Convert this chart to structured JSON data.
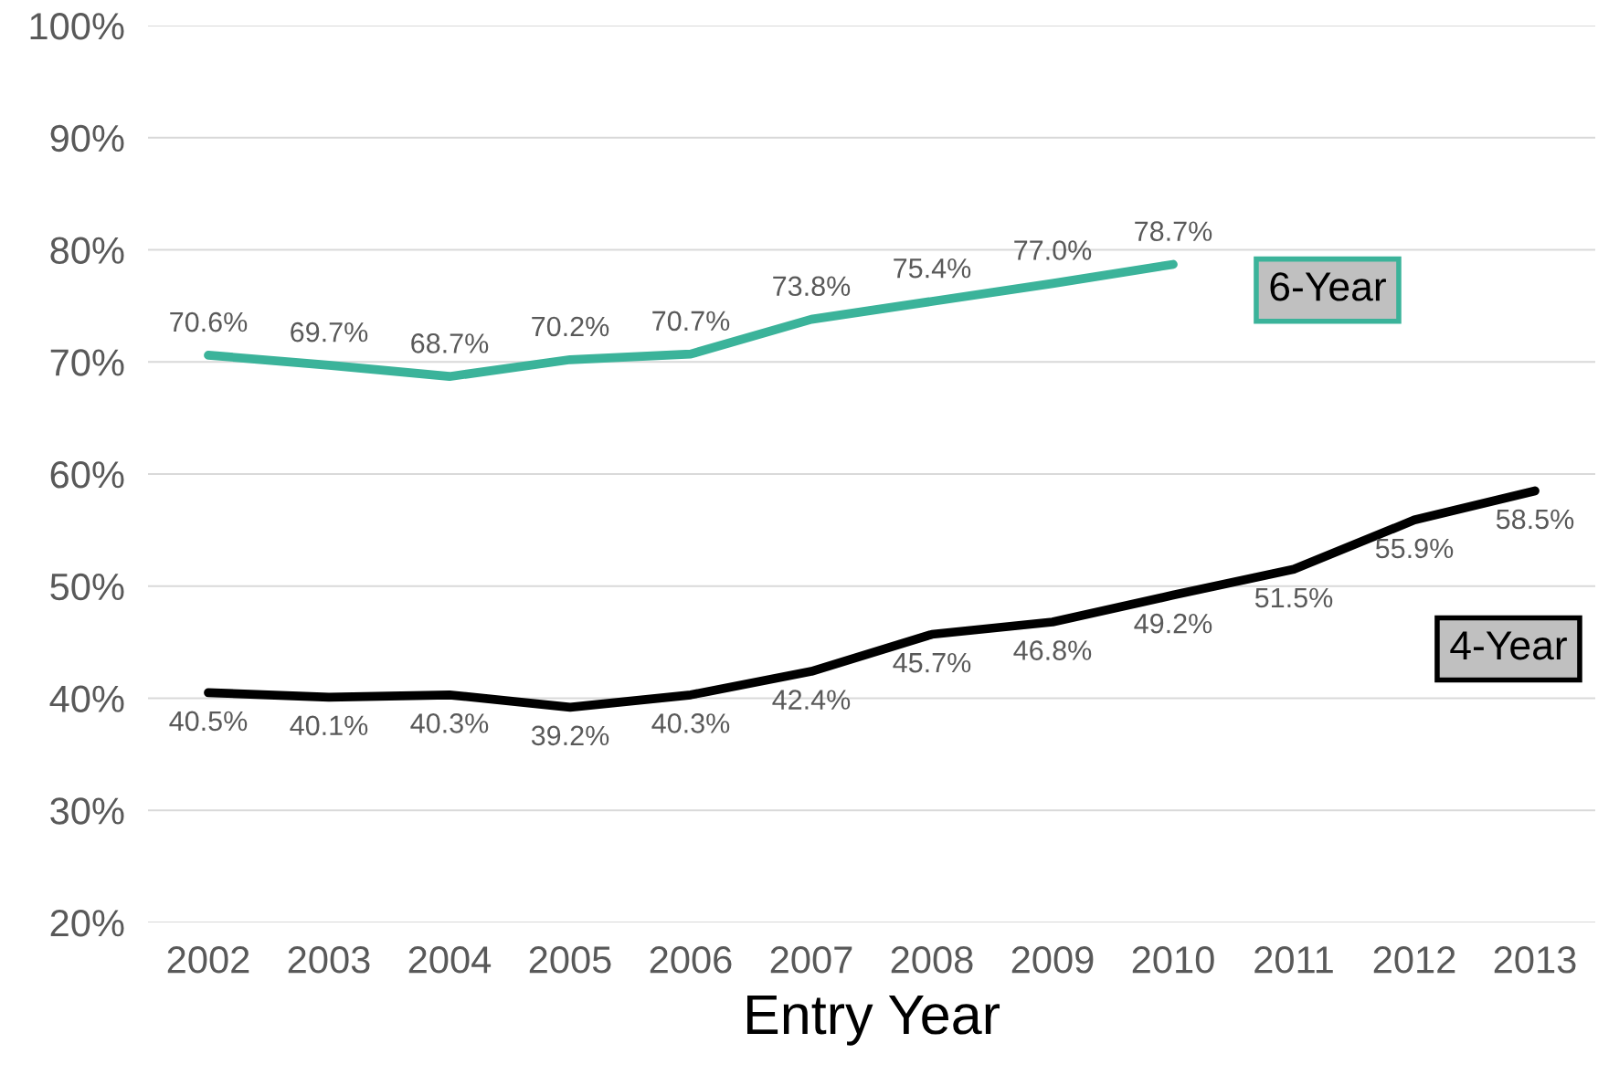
{
  "chart_data": {
    "type": "line",
    "xlabel": "Entry Year",
    "categories": [
      "2002",
      "2003",
      "2004",
      "2005",
      "2006",
      "2007",
      "2008",
      "2009",
      "2010",
      "2011",
      "2012",
      "2013"
    ],
    "series": [
      {
        "name": "6-Year",
        "color": "#3bb39a",
        "values": [
          70.6,
          69.7,
          68.7,
          70.2,
          70.7,
          73.8,
          75.4,
          77.0,
          78.7,
          null,
          null,
          null
        ],
        "value_labels": [
          "70.6%",
          "69.7%",
          "68.7%",
          "70.2%",
          "70.7%",
          "73.8%",
          "75.4%",
          "77.0%",
          "78.7%",
          null,
          null,
          null
        ]
      },
      {
        "name": "4-Year",
        "color": "#000000",
        "values": [
          40.5,
          40.1,
          40.3,
          39.2,
          40.3,
          42.4,
          45.7,
          46.8,
          49.2,
          51.5,
          55.9,
          58.5
        ],
        "value_labels": [
          "40.5%",
          "40.1%",
          "40.3%",
          "39.2%",
          "40.3%",
          "42.4%",
          "45.7%",
          "46.8%",
          "49.2%",
          "51.5%",
          "55.9%",
          "58.5%"
        ]
      }
    ],
    "ylim": [
      20,
      100
    ],
    "yticks": [
      {
        "value": 20,
        "label": "20%"
      },
      {
        "value": 30,
        "label": "30%"
      },
      {
        "value": 40,
        "label": "40%"
      },
      {
        "value": 50,
        "label": "50%"
      },
      {
        "value": 60,
        "label": "60%"
      },
      {
        "value": 70,
        "label": "70%"
      },
      {
        "value": 80,
        "label": "80%"
      },
      {
        "value": 90,
        "label": "90%"
      },
      {
        "value": 100,
        "label": "100%"
      }
    ],
    "grid": "y",
    "legend": false,
    "marker": "none",
    "line_style": "solid"
  }
}
